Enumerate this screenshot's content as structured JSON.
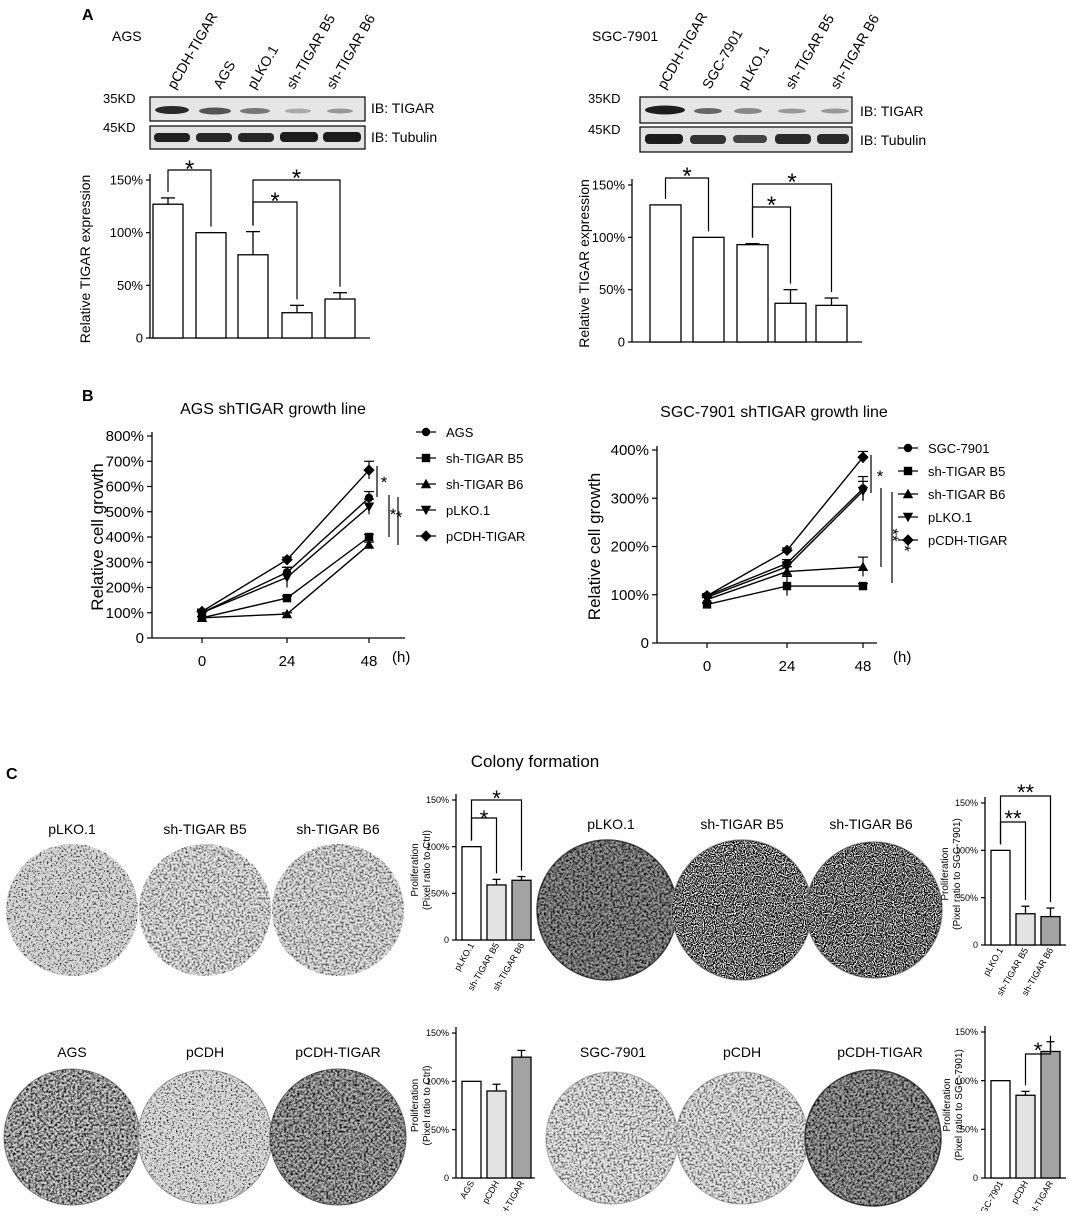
{
  "panel_letters": {
    "a": "A",
    "b": "B",
    "c": "C"
  },
  "panelA": {
    "left": {
      "cell_line": "AGS",
      "lanes": [
        "pCDH-TIGAR",
        "AGS",
        "pLKO.1",
        "sh-TIGAR B5",
        "sh-TIGAR B6"
      ],
      "blots": [
        {
          "kd": "35KD",
          "ib": "IB: TIGAR"
        },
        {
          "kd": "45KD",
          "ib": "IB: Tubulin"
        }
      ]
    },
    "right": {
      "cell_line": "SGC-7901",
      "lanes": [
        "pCDH-TIGAR",
        "SGC-7901",
        "pLKO.1",
        "sh-TIGAR B5",
        "sh-TIGAR B6"
      ],
      "blots": [
        {
          "kd": "35KD",
          "ib": "IB: TIGAR"
        },
        {
          "kd": "45KD",
          "ib": "IB: Tubulin"
        }
      ]
    }
  },
  "panelC": {
    "title": "Colony formation",
    "ags_top": [
      "pLKO.1",
      "sh-TIGAR B5",
      "sh-TIGAR B6"
    ],
    "ags_bottom": [
      "AGS",
      "pCDH",
      "pCDH-TIGAR"
    ],
    "sgc_top": [
      "pLKO.1",
      "sh-TIGAR B5",
      "sh-TIGAR B6"
    ],
    "sgc_bottom": [
      "SGC-7901",
      "pCDH",
      "pCDH-TIGAR"
    ]
  },
  "colors": {
    "white_bar": "#ffffff",
    "light_bar": "#e3e3e3",
    "dark_bar": "#a3a3a3",
    "ink": "#000000"
  },
  "chart_data": [
    {
      "id": "expr-ags",
      "type": "bar",
      "ylabel": "Relative TIGAR expression",
      "yticks": [
        "0",
        "50%",
        "100%",
        "150%"
      ],
      "ylim": [
        0,
        150
      ],
      "categories": [
        "pCDH-TIGAR",
        "AGS",
        "pLKO.1",
        "sh-TIGAR B5",
        "sh-TIGAR B6"
      ],
      "values": [
        127,
        100,
        79,
        24,
        37
      ],
      "errors": [
        6,
        0,
        22,
        7,
        6
      ],
      "significance": [
        "*",
        "*",
        "*"
      ]
    },
    {
      "id": "expr-sgc",
      "type": "bar",
      "ylabel": "Relative TIGAR expression",
      "yticks": [
        "0",
        "50%",
        "100%",
        "150%"
      ],
      "ylim": [
        0,
        150
      ],
      "categories": [
        "pCDH-TIGAR",
        "SGC-7901",
        "pLKO.1",
        "sh-TIGAR B5",
        "sh-TIGAR B6"
      ],
      "values": [
        131,
        100,
        93,
        37,
        35
      ],
      "errors": [
        0,
        0,
        1,
        13,
        7
      ],
      "significance": [
        "*",
        "*",
        "*"
      ]
    },
    {
      "id": "growth-ags",
      "type": "line",
      "title": "AGS shTIGAR growth line",
      "ylabel": "Relative cell growth",
      "xunit": "(h)",
      "x": [
        0,
        24,
        48
      ],
      "xticks": [
        "0",
        "24",
        "48"
      ],
      "yticks": [
        "0",
        "100%",
        "200%",
        "300%",
        "400%",
        "500%",
        "600%",
        "700%",
        "800%"
      ],
      "ylim": [
        0,
        800
      ],
      "series": [
        {
          "name": "AGS",
          "marker": "circle",
          "values": [
            100,
            260,
            555
          ],
          "errors": [
            8,
            20,
            25
          ]
        },
        {
          "name": "sh-TIGAR B5",
          "marker": "square",
          "values": [
            80,
            158,
            400
          ],
          "errors": [
            5,
            8,
            10
          ]
        },
        {
          "name": "sh-TIGAR B6",
          "marker": "triangle",
          "values": [
            80,
            95,
            370
          ],
          "errors": [
            5,
            5,
            10
          ]
        },
        {
          "name": "pLKO.1",
          "marker": "triangle-down",
          "values": [
            100,
            240,
            520
          ],
          "errors": [
            8,
            40,
            30
          ]
        },
        {
          "name": "pCDH-TIGAR",
          "marker": "diamond",
          "values": [
            105,
            310,
            665
          ],
          "errors": [
            8,
            10,
            35
          ]
        }
      ],
      "significance": [
        "*",
        "*",
        "*"
      ]
    },
    {
      "id": "growth-sgc",
      "type": "line",
      "title": "SGC-7901 shTIGAR growth line",
      "ylabel": "Relative cell growth",
      "xunit": "(h)",
      "x": [
        0,
        24,
        48
      ],
      "xticks": [
        "0",
        "24",
        "48"
      ],
      "yticks": [
        "0",
        "100%",
        "200%",
        "300%",
        "400%"
      ],
      "ylim": [
        0,
        400
      ],
      "series": [
        {
          "name": "SGC-7901",
          "marker": "circle",
          "values": [
            98,
            165,
            320
          ],
          "errors": [
            4,
            8,
            25
          ]
        },
        {
          "name": "sh-TIGAR B5",
          "marker": "square",
          "values": [
            80,
            118,
            118
          ],
          "errors": [
            4,
            20,
            5
          ]
        },
        {
          "name": "sh-TIGAR B6",
          "marker": "triangle",
          "values": [
            90,
            148,
            158
          ],
          "errors": [
            4,
            10,
            20
          ]
        },
        {
          "name": "pLKO.1",
          "marker": "triangle-down",
          "values": [
            95,
            158,
            315
          ],
          "errors": [
            4,
            10,
            20
          ]
        },
        {
          "name": "pCDH-TIGAR",
          "marker": "diamond",
          "values": [
            98,
            192,
            385
          ],
          "errors": [
            4,
            5,
            12
          ]
        }
      ],
      "significance": [
        "*",
        "**",
        "**"
      ]
    },
    {
      "id": "colony-ags-sh",
      "type": "bar",
      "ylabel": "Proliferation\n(Pixel ratio to Ctrl)",
      "yticks": [
        "0",
        "50%",
        "100%",
        "150%"
      ],
      "ylim": [
        0,
        150
      ],
      "categories": [
        "pLKO.1",
        "sh-TIGAR B5",
        "sh-TIGAR B6"
      ],
      "values": [
        100,
        59,
        64
      ],
      "errors": [
        0,
        6,
        4
      ],
      "significance": [
        "*",
        "*"
      ]
    },
    {
      "id": "colony-sgc-sh",
      "type": "bar",
      "ylabel": "Proliferation\n(Pixel ratio to SGC-7901)",
      "yticks": [
        "0",
        "50%",
        "100%",
        "150%"
      ],
      "ylim": [
        0,
        150
      ],
      "categories": [
        "pLKO.1",
        "sh-TIGAR B5",
        "sh-TIGAR B6"
      ],
      "values": [
        100,
        33,
        30
      ],
      "errors": [
        0,
        8,
        9
      ],
      "significance": [
        "**",
        "**"
      ]
    },
    {
      "id": "colony-ags-oe",
      "type": "bar",
      "ylabel": "Proliferation\n(Pixel ratio to Ctrl)",
      "yticks": [
        "0",
        "50%",
        "100%",
        "150%"
      ],
      "ylim": [
        0,
        150
      ],
      "categories": [
        "AGS",
        "pCDH",
        "pCDH-TIGAR"
      ],
      "values": [
        100,
        90,
        125
      ],
      "errors": [
        0,
        7,
        7
      ],
      "significance": []
    },
    {
      "id": "colony-sgc-oe",
      "type": "bar",
      "ylabel": "Proliferation\n(Pixel ratio to SGC-7901)",
      "yticks": [
        "0",
        "50%",
        "100%",
        "150%"
      ],
      "ylim": [
        0,
        150
      ],
      "categories": [
        "SGC-7901",
        "pCDH",
        "pCDH-TIGAR"
      ],
      "values": [
        100,
        85,
        130
      ],
      "errors": [
        0,
        4,
        10
      ],
      "significance": [
        "*"
      ]
    }
  ]
}
